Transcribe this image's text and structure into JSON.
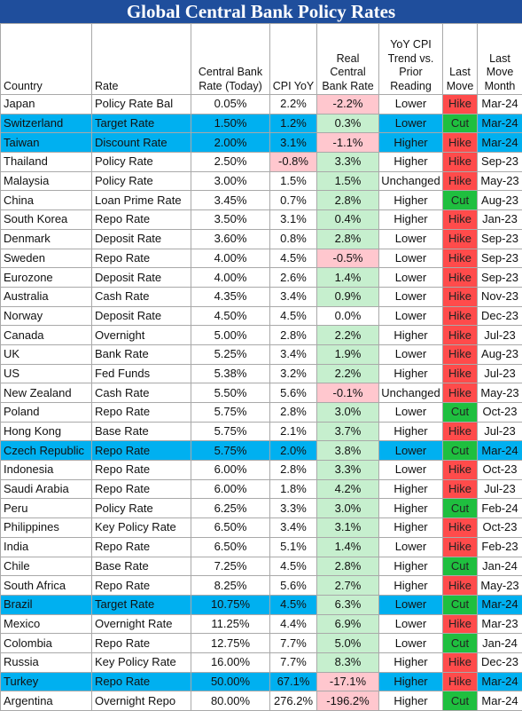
{
  "title": "Global Central Bank Policy Rates",
  "headers": {
    "country": "Country",
    "rate": "Rate",
    "cb_rate": "Central Bank Rate (Today)",
    "cpi": "CPI YoY",
    "real": "Real Central Bank Rate",
    "trend": "YoY CPI Trend vs. Prior Reading",
    "last_move": "Last Move",
    "month": "Last Move Month"
  },
  "colors": {
    "title_bg": "#1f4e9c",
    "highlight_row": "#00b0f0",
    "positive_fill": "#c6efce",
    "negative_fill": "#ffc7ce",
    "hike": "#ff4b4b",
    "cut": "#1fbf3f"
  },
  "rows": [
    {
      "country": "Japan",
      "rate": "Policy Rate Bal",
      "cb": "0.05%",
      "cpi": "2.2%",
      "cpi_neg": false,
      "real": "-2.2%",
      "trend": "Lower",
      "move": "Hike",
      "month": "Mar-24",
      "hl": false
    },
    {
      "country": "Switzerland",
      "rate": "Target Rate",
      "cb": "1.50%",
      "cpi": "1.2%",
      "cpi_neg": false,
      "real": "0.3%",
      "trend": "Lower",
      "move": "Cut",
      "month": "Mar-24",
      "hl": true
    },
    {
      "country": "Taiwan",
      "rate": "Discount Rate",
      "cb": "2.00%",
      "cpi": "3.1%",
      "cpi_neg": false,
      "real": "-1.1%",
      "trend": "Higher",
      "move": "Hike",
      "month": "Mar-24",
      "hl": true
    },
    {
      "country": "Thailand",
      "rate": "Policy Rate",
      "cb": "2.50%",
      "cpi": "-0.8%",
      "cpi_neg": true,
      "real": "3.3%",
      "trend": "Higher",
      "move": "Hike",
      "month": "Sep-23",
      "hl": false
    },
    {
      "country": "Malaysia",
      "rate": "Policy Rate",
      "cb": "3.00%",
      "cpi": "1.5%",
      "cpi_neg": false,
      "real": "1.5%",
      "trend": "Unchanged",
      "move": "Hike",
      "month": "May-23",
      "hl": false
    },
    {
      "country": "China",
      "rate": "Loan Prime Rate",
      "cb": "3.45%",
      "cpi": "0.7%",
      "cpi_neg": false,
      "real": "2.8%",
      "trend": "Higher",
      "move": "Cut",
      "month": "Aug-23",
      "hl": false
    },
    {
      "country": "South Korea",
      "rate": "Repo Rate",
      "cb": "3.50%",
      "cpi": "3.1%",
      "cpi_neg": false,
      "real": "0.4%",
      "trend": "Higher",
      "move": "Hike",
      "month": "Jan-23",
      "hl": false
    },
    {
      "country": "Denmark",
      "rate": "Deposit Rate",
      "cb": "3.60%",
      "cpi": "0.8%",
      "cpi_neg": false,
      "real": "2.8%",
      "trend": "Lower",
      "move": "Hike",
      "month": "Sep-23",
      "hl": false
    },
    {
      "country": "Sweden",
      "rate": "Repo Rate",
      "cb": "4.00%",
      "cpi": "4.5%",
      "cpi_neg": false,
      "real": "-0.5%",
      "trend": "Lower",
      "move": "Hike",
      "month": "Sep-23",
      "hl": false
    },
    {
      "country": "Eurozone",
      "rate": "Deposit Rate",
      "cb": "4.00%",
      "cpi": "2.6%",
      "cpi_neg": false,
      "real": "1.4%",
      "trend": "Lower",
      "move": "Hike",
      "month": "Sep-23",
      "hl": false
    },
    {
      "country": "Australia",
      "rate": "Cash Rate",
      "cb": "4.35%",
      "cpi": "3.4%",
      "cpi_neg": false,
      "real": "0.9%",
      "trend": "Lower",
      "move": "Hike",
      "month": "Nov-23",
      "hl": false
    },
    {
      "country": "Norway",
      "rate": "Deposit Rate",
      "cb": "4.50%",
      "cpi": "4.5%",
      "cpi_neg": false,
      "real": "0.0%",
      "trend": "Lower",
      "move": "Hike",
      "month": "Dec-23",
      "hl": false
    },
    {
      "country": "Canada",
      "rate": "Overnight",
      "cb": "5.00%",
      "cpi": "2.8%",
      "cpi_neg": false,
      "real": "2.2%",
      "trend": "Higher",
      "move": "Hike",
      "month": "Jul-23",
      "hl": false
    },
    {
      "country": "UK",
      "rate": "Bank Rate",
      "cb": "5.25%",
      "cpi": "3.4%",
      "cpi_neg": false,
      "real": "1.9%",
      "trend": "Lower",
      "move": "Hike",
      "month": "Aug-23",
      "hl": false
    },
    {
      "country": "US",
      "rate": "Fed Funds",
      "cb": "5.38%",
      "cpi": "3.2%",
      "cpi_neg": false,
      "real": "2.2%",
      "trend": "Higher",
      "move": "Hike",
      "month": "Jul-23",
      "hl": false
    },
    {
      "country": "New Zealand",
      "rate": "Cash Rate",
      "cb": "5.50%",
      "cpi": "5.6%",
      "cpi_neg": false,
      "real": "-0.1%",
      "trend": "Unchanged",
      "move": "Hike",
      "month": "May-23",
      "hl": false
    },
    {
      "country": "Poland",
      "rate": "Repo Rate",
      "cb": "5.75%",
      "cpi": "2.8%",
      "cpi_neg": false,
      "real": "3.0%",
      "trend": "Lower",
      "move": "Cut",
      "month": "Oct-23",
      "hl": false
    },
    {
      "country": "Hong Kong",
      "rate": "Base Rate",
      "cb": "5.75%",
      "cpi": "2.1%",
      "cpi_neg": false,
      "real": "3.7%",
      "trend": "Higher",
      "move": "Hike",
      "month": "Jul-23",
      "hl": false
    },
    {
      "country": "Czech Republic",
      "rate": "Repo Rate",
      "cb": "5.75%",
      "cpi": "2.0%",
      "cpi_neg": false,
      "real": "3.8%",
      "trend": "Lower",
      "move": "Cut",
      "month": "Mar-24",
      "hl": true
    },
    {
      "country": "Indonesia",
      "rate": "Repo Rate",
      "cb": "6.00%",
      "cpi": "2.8%",
      "cpi_neg": false,
      "real": "3.3%",
      "trend": "Lower",
      "move": "Hike",
      "month": "Oct-23",
      "hl": false
    },
    {
      "country": "Saudi Arabia",
      "rate": "Repo Rate",
      "cb": "6.00%",
      "cpi": "1.8%",
      "cpi_neg": false,
      "real": "4.2%",
      "trend": "Higher",
      "move": "Hike",
      "month": "Jul-23",
      "hl": false
    },
    {
      "country": "Peru",
      "rate": "Policy Rate",
      "cb": "6.25%",
      "cpi": "3.3%",
      "cpi_neg": false,
      "real": "3.0%",
      "trend": "Higher",
      "move": "Cut",
      "month": "Feb-24",
      "hl": false
    },
    {
      "country": "Philippines",
      "rate": "Key Policy Rate",
      "cb": "6.50%",
      "cpi": "3.4%",
      "cpi_neg": false,
      "real": "3.1%",
      "trend": "Higher",
      "move": "Hike",
      "month": "Oct-23",
      "hl": false
    },
    {
      "country": "India",
      "rate": "Repo Rate",
      "cb": "6.50%",
      "cpi": "5.1%",
      "cpi_neg": false,
      "real": "1.4%",
      "trend": "Lower",
      "move": "Hike",
      "month": "Feb-23",
      "hl": false
    },
    {
      "country": "Chile",
      "rate": "Base Rate",
      "cb": "7.25%",
      "cpi": "4.5%",
      "cpi_neg": false,
      "real": "2.8%",
      "trend": "Higher",
      "move": "Cut",
      "month": "Jan-24",
      "hl": false
    },
    {
      "country": "South Africa",
      "rate": "Repo Rate",
      "cb": "8.25%",
      "cpi": "5.6%",
      "cpi_neg": false,
      "real": "2.7%",
      "trend": "Higher",
      "move": "Hike",
      "month": "May-23",
      "hl": false
    },
    {
      "country": "Brazil",
      "rate": "Target Rate",
      "cb": "10.75%",
      "cpi": "4.5%",
      "cpi_neg": false,
      "real": "6.3%",
      "trend": "Lower",
      "move": "Cut",
      "month": "Mar-24",
      "hl": true
    },
    {
      "country": "Mexico",
      "rate": "Overnight Rate",
      "cb": "11.25%",
      "cpi": "4.4%",
      "cpi_neg": false,
      "real": "6.9%",
      "trend": "Lower",
      "move": "Hike",
      "month": "Mar-23",
      "hl": false
    },
    {
      "country": "Colombia",
      "rate": "Repo Rate",
      "cb": "12.75%",
      "cpi": "7.7%",
      "cpi_neg": false,
      "real": "5.0%",
      "trend": "Lower",
      "move": "Cut",
      "month": "Jan-24",
      "hl": false
    },
    {
      "country": "Russia",
      "rate": "Key Policy Rate",
      "cb": "16.00%",
      "cpi": "7.7%",
      "cpi_neg": false,
      "real": "8.3%",
      "trend": "Higher",
      "move": "Hike",
      "month": "Dec-23",
      "hl": false
    },
    {
      "country": "Turkey",
      "rate": "Repo Rate",
      "cb": "50.00%",
      "cpi": "67.1%",
      "cpi_neg": false,
      "real": "-17.1%",
      "trend": "Higher",
      "move": "Hike",
      "month": "Mar-24",
      "hl": true
    },
    {
      "country": "Argentina",
      "rate": "Overnight Repo",
      "cb": "80.00%",
      "cpi": "276.2%",
      "cpi_neg": false,
      "real": "-196.2%",
      "trend": "Higher",
      "move": "Cut",
      "month": "Mar-24",
      "hl": false
    }
  ]
}
